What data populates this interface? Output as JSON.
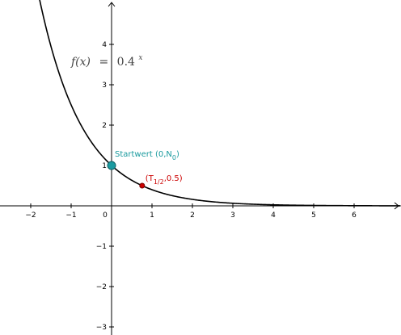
{
  "chart_data": {
    "type": "line",
    "x_ticks": [
      -2,
      -1,
      0,
      1,
      2,
      3,
      4,
      5,
      6
    ],
    "y_ticks": [
      -3,
      -2,
      -1,
      1,
      2,
      3,
      4
    ],
    "x_tick_labels": [
      "−2",
      "−1",
      "0",
      "1",
      "2",
      "3",
      "4",
      "5",
      "6"
    ],
    "y_tick_labels": [
      "−3",
      "−2",
      "−1",
      "1",
      "2",
      "3",
      "4"
    ],
    "xlim": [
      -2.75,
      7.15
    ],
    "ylim": [
      -3.1,
      5.1
    ],
    "grid": false,
    "function": {
      "label_parts": [
        "f(x)",
        "=",
        "0.4",
        "x"
      ],
      "base": 0.4,
      "color": "#000000",
      "x_range": [
        -2.75,
        7.15
      ]
    },
    "points": [
      {
        "name": "startwert",
        "x": 0,
        "y": 1,
        "color": "#1a9aa0",
        "label_color": "#1a9a9e",
        "label_main": "Startwert (0,N",
        "label_sub": "0",
        "label_end": ")"
      },
      {
        "name": "halbwertszeit",
        "x": 0.756,
        "y": 0.5,
        "color": "#cc0000",
        "label_color": "#cc0000",
        "label_main": "(T",
        "label_sub": "1/2",
        "label_end": ",0.5)"
      }
    ]
  }
}
